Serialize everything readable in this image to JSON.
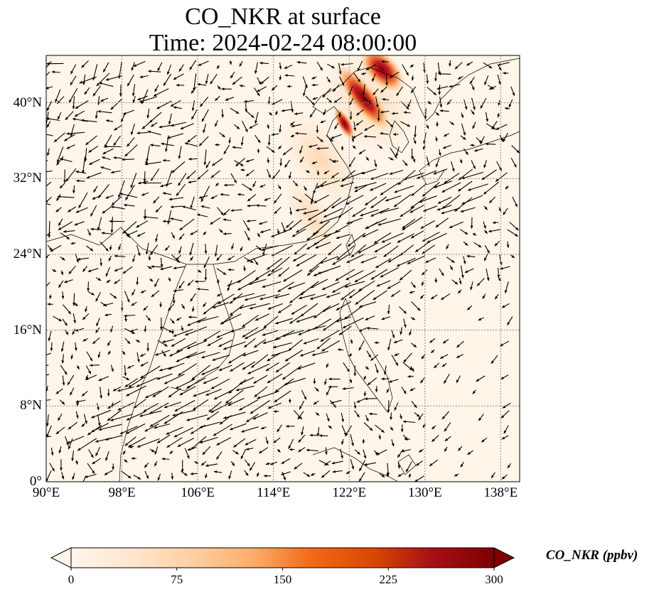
{
  "title": {
    "line1": "CO_NKR at surface",
    "line2": "Time: 2024-02-24 08:00:00"
  },
  "map": {
    "lon_range": [
      90,
      140
    ],
    "lat_range": [
      0,
      45
    ],
    "lon_ticks": [
      {
        "value": 90,
        "label": "90°E"
      },
      {
        "value": 98,
        "label": "98°E"
      },
      {
        "value": 106,
        "label": "106°E"
      },
      {
        "value": 114,
        "label": "114°E"
      },
      {
        "value": 122,
        "label": "122°E"
      },
      {
        "value": 130,
        "label": "130°E"
      },
      {
        "value": 138,
        "label": "138°E"
      }
    ],
    "lat_ticks": [
      {
        "value": 0,
        "label": "0°"
      },
      {
        "value": 8,
        "label": "8°N"
      },
      {
        "value": 16,
        "label": "16°N"
      },
      {
        "value": 24,
        "label": "24°N"
      },
      {
        "value": 32,
        "label": "32°N"
      },
      {
        "value": 40,
        "label": "40°N"
      }
    ],
    "gridlines": "dotted",
    "field": "CO_NKR concentration (filled) with surface wind vectors",
    "background_color": "#fff5e9"
  },
  "colorbar": {
    "label": "CO_NKR (ppbv)",
    "min": 0,
    "max": 300,
    "extend": "both",
    "ticks": [
      {
        "value": 0,
        "label": "0"
      },
      {
        "value": 75,
        "label": "75"
      },
      {
        "value": 150,
        "label": "150"
      },
      {
        "value": 225,
        "label": "225"
      },
      {
        "value": 300,
        "label": "300"
      }
    ],
    "colors": [
      "#fff5eb",
      "#fee6ce",
      "#fdd0a2",
      "#fdae6b",
      "#f16913",
      "#d94801",
      "#a50f15",
      "#7f0000"
    ]
  }
}
